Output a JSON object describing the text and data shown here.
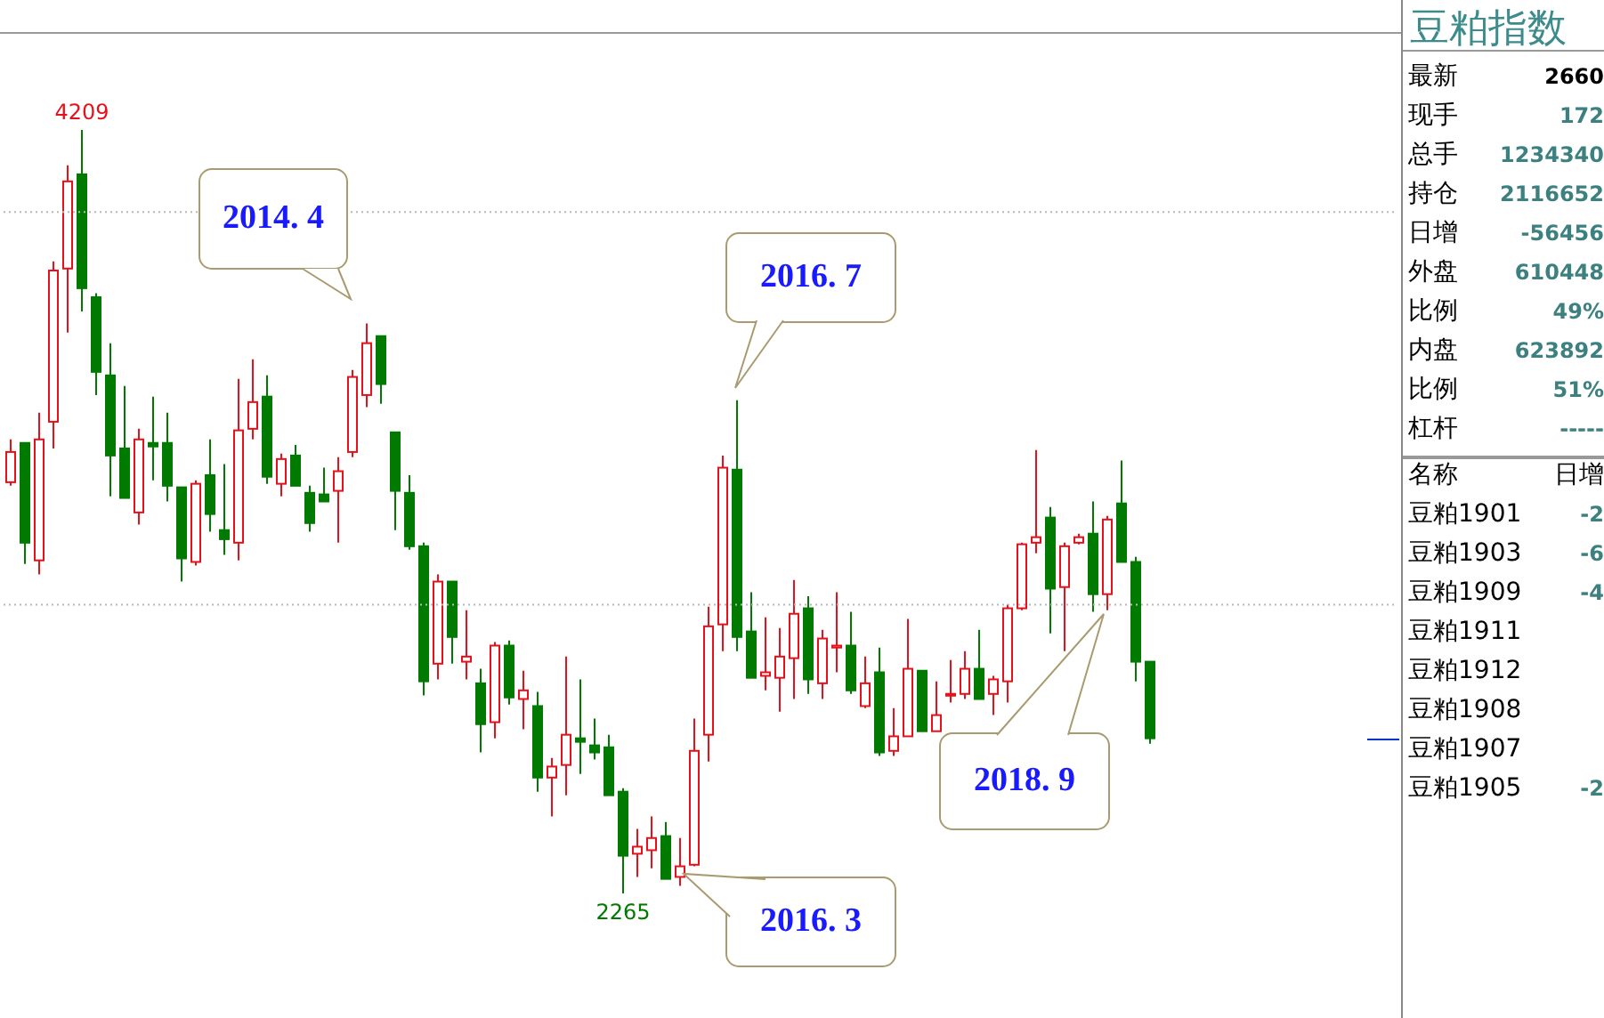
{
  "chart_data": [
    {
      "type": "candlestick",
      "categories": [
        null,
        null,
        null,
        null,
        null,
        null,
        null,
        null,
        null,
        null,
        null,
        null,
        null,
        null,
        null,
        null,
        null,
        null,
        null,
        null,
        null,
        null,
        null,
        null,
        null,
        null,
        null,
        null,
        null,
        null,
        null,
        null,
        null,
        null,
        null,
        null,
        null,
        null,
        null,
        null,
        null,
        null,
        null,
        null,
        null,
        null,
        null,
        null,
        null,
        null,
        null,
        null,
        null,
        null,
        null,
        null,
        null,
        null,
        null,
        null,
        null,
        null,
        null,
        null,
        null,
        null,
        null,
        null,
        null,
        null,
        null,
        null,
        null,
        null,
        null,
        null,
        null,
        null,
        null,
        null,
        null
      ],
      "ohlc": [
        [
          3312,
          3421,
          3303,
          3389
        ],
        [
          3412,
          3412,
          3104,
          3158
        ],
        [
          3113,
          3489,
          3077,
          3421
        ],
        [
          3466,
          3874,
          3398,
          3851
        ],
        [
          3856,
          4119,
          3693,
          4078
        ],
        [
          4096,
          4209,
          3747,
          3806
        ],
        [
          3783,
          3793,
          3534,
          3593
        ],
        [
          3584,
          3666,
          3276,
          3380
        ],
        [
          3398,
          3557,
          3272,
          3272
        ],
        [
          3235,
          3448,
          3204,
          3421
        ],
        [
          3412,
          3530,
          3317,
          3403
        ],
        [
          3412,
          3489,
          3263,
          3303
        ],
        [
          3299,
          3299,
          3059,
          3118
        ],
        [
          3109,
          3317,
          3100,
          3308
        ],
        [
          3330,
          3421,
          3186,
          3231
        ],
        [
          3190,
          3358,
          3127,
          3167
        ],
        [
          3158,
          3575,
          3113,
          3444
        ],
        [
          3448,
          3625,
          3421,
          3516
        ],
        [
          3530,
          3584,
          3308,
          3326
        ],
        [
          3308,
          3385,
          3276,
          3371
        ],
        [
          3380,
          3407,
          3303,
          3303
        ],
        [
          3285,
          3303,
          3186,
          3208
        ],
        [
          3281,
          3349,
          3263,
          3263
        ],
        [
          3290,
          3376,
          3158,
          3340
        ],
        [
          3389,
          3598,
          3376,
          3580
        ],
        [
          3534,
          3716,
          3503,
          3666
        ],
        [
          3684,
          3684,
          3512,
          3562
        ],
        [
          3439,
          3439,
          3190,
          3290
        ],
        [
          3285,
          3330,
          3140,
          3149
        ],
        [
          3149,
          3158,
          2769,
          2805
        ],
        [
          2850,
          3077,
          2810,
          3059
        ],
        [
          3059,
          3059,
          2850,
          2918
        ],
        [
          2855,
          2986,
          2810,
          2868
        ],
        [
          2800,
          2837,
          2624,
          2696
        ],
        [
          2701,
          2905,
          2660,
          2896
        ],
        [
          2896,
          2909,
          2746,
          2764
        ],
        [
          2760,
          2832,
          2683,
          2782
        ],
        [
          2742,
          2778,
          2524,
          2560
        ],
        [
          2560,
          2610,
          2461,
          2588
        ],
        [
          2592,
          2868,
          2515,
          2669
        ],
        [
          2660,
          2810,
          2569,
          2651
        ],
        [
          2642,
          2710,
          2606,
          2624
        ],
        [
          2637,
          2669,
          2515,
          2515
        ],
        [
          2524,
          2533,
          2265,
          2361
        ],
        [
          2366,
          2429,
          2307,
          2384
        ],
        [
          2375,
          2461,
          2329,
          2406
        ],
        [
          2411,
          2447,
          2302,
          2302
        ],
        [
          2307,
          2406,
          2284,
          2334
        ],
        [
          2338,
          2710,
          2334,
          2628
        ],
        [
          2669,
          2995,
          2601,
          2945
        ],
        [
          2950,
          3380,
          2882,
          3349
        ],
        [
          3344,
          3521,
          2882,
          2918
        ],
        [
          2932,
          3032,
          2814,
          2814
        ],
        [
          2819,
          2968,
          2782,
          2828
        ],
        [
          2814,
          2941,
          2728,
          2868
        ],
        [
          2864,
          3063,
          2760,
          2977
        ],
        [
          2991,
          3022,
          2773,
          2810
        ],
        [
          2800,
          2936,
          2760,
          2914
        ],
        [
          2891,
          3032,
          2828,
          2896
        ],
        [
          2896,
          2982,
          2773,
          2782
        ],
        [
          2742,
          2868,
          2737,
          2800
        ],
        [
          2828,
          2891,
          2615,
          2624
        ],
        [
          2628,
          2737,
          2615,
          2665
        ],
        [
          2665,
          2964,
          2665,
          2837
        ],
        [
          2832,
          2832,
          2678,
          2678
        ],
        [
          2678,
          2805,
          2678,
          2719
        ],
        [
          2769,
          2859,
          2751,
          2773
        ],
        [
          2773,
          2882,
          2760,
          2837
        ],
        [
          2837,
          2936,
          2760,
          2760
        ],
        [
          2773,
          2819,
          2719,
          2810
        ],
        [
          2805,
          3000,
          2751,
          2991
        ],
        [
          2991,
          3158,
          2986,
          3154
        ],
        [
          3158,
          3394,
          3131,
          3172
        ],
        [
          3222,
          3249,
          2927,
          3041
        ],
        [
          3045,
          3158,
          2882,
          3149
        ],
        [
          3158,
          3181,
          3154,
          3172
        ],
        [
          3181,
          3263,
          2982,
          3027
        ],
        [
          3027,
          3226,
          2986,
          3217
        ],
        [
          3258,
          3367,
          3109,
          3109
        ],
        [
          3109,
          3122,
          2805,
          2855
        ],
        [
          2855,
          2855,
          2646,
          2660
        ]
      ],
      "colors": [
        "#e8101a",
        "#007a00",
        "#e8101a",
        "#e8101a",
        "#e8101a",
        "#007a00",
        "#007a00",
        "#007a00",
        "#007a00",
        "#e8101a",
        "#007a00",
        "#007a00",
        "#007a00",
        "#e8101a",
        "#007a00",
        "#007a00",
        "#e8101a",
        "#e8101a",
        "#007a00",
        "#e8101a",
        "#007a00",
        "#007a00",
        "#007a00",
        "#e8101a",
        "#e8101a",
        "#e8101a",
        "#007a00",
        "#007a00",
        "#007a00",
        "#007a00",
        "#e8101a",
        "#007a00",
        "#e8101a",
        "#007a00",
        "#e8101a",
        "#007a00",
        "#e8101a",
        "#007a00",
        "#e8101a",
        "#e8101a",
        "#007a00",
        "#007a00",
        "#007a00",
        "#007a00",
        "#e8101a",
        "#e8101a",
        "#007a00",
        "#e8101a",
        "#e8101a",
        "#e8101a",
        "#e8101a",
        "#007a00",
        "#007a00",
        "#e8101a",
        "#e8101a",
        "#e8101a",
        "#007a00",
        "#e8101a",
        "#e8101a",
        "#007a00",
        "#e8101a",
        "#007a00",
        "#e8101a",
        "#e8101a",
        "#007a00",
        "#e8101a",
        "#e8101a",
        "#e8101a",
        "#007a00",
        "#e8101a",
        "#e8101a",
        "#e8101a",
        "#e8101a",
        "#007a00",
        "#e8101a",
        "#e8101a",
        "#007a00",
        "#e8101a",
        "#007a00",
        "#007a00",
        "#007a00"
      ],
      "yticks": [
        {
          "value": 4000,
          "label": null
        },
        {
          "value": 3000,
          "label": null
        }
      ],
      "grid": "y",
      "tick_labels": false,
      "annotations": [
        {
          "text": "4209",
          "y": 4209
        },
        {
          "text": "2265",
          "y": 2265
        },
        "2014. 4",
        "2016. 7",
        "2016. 3",
        "2018. 9"
      ]
    },
    {
      "type": "other",
      "title": "豆粕指数",
      "annotations": [
        "最新",
        "2660",
        "现手",
        "172",
        "总手",
        "1234340",
        "持仓",
        "2116652",
        "日增",
        "-56456",
        "外盘",
        "610448",
        "比例",
        "49%",
        "内盘",
        "623892",
        "比例",
        "51%",
        "杠杆",
        "-----",
        "名称",
        "日增",
        "豆粕1901",
        "-2",
        "豆粕1903",
        "-6",
        "豆粕1909",
        "-4",
        "豆粕1911",
        "豆粕1912",
        "豆粕1908",
        "豆粕1907",
        "豆粕1905",
        "-2"
      ]
    }
  ]
}
